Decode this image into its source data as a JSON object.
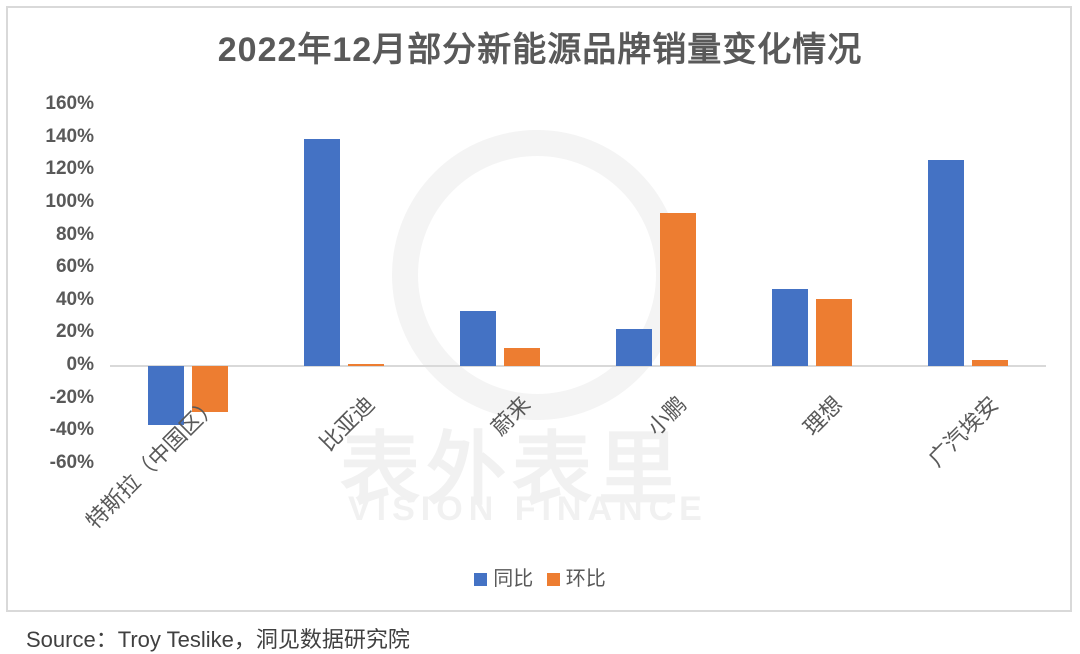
{
  "chart_data": {
    "type": "bar",
    "title": "2022年12月部分新能源品牌销量变化情况",
    "categories": [
      "特斯拉（中国区）",
      "比亚迪",
      "蔚来",
      "小鹏",
      "理想",
      "广汽埃安"
    ],
    "series": [
      {
        "name": "同比",
        "color": "#4472c4",
        "values": [
          -36,
          139,
          34,
          23,
          47,
          126
        ]
      },
      {
        "name": "环比",
        "color": "#ed7d31",
        "values": [
          -28,
          1,
          11,
          94,
          41,
          4
        ]
      }
    ],
    "xlabel": "",
    "ylabel": "",
    "ylim": [
      -60,
      160
    ],
    "yticks": [
      "160%",
      "140%",
      "120%",
      "100%",
      "80%",
      "60%",
      "40%",
      "20%",
      "0%",
      "-20%",
      "-40%",
      "-60%"
    ],
    "grid": false,
    "legend_position": "bottom"
  },
  "legend": [
    {
      "label": "同比",
      "color": "#4472c4"
    },
    {
      "label": "环比",
      "color": "#ed7d31"
    }
  ],
  "source": "Source：Troy Teslike，洞见数据研究院",
  "watermark": {
    "cn": "表外表里",
    "en": "VISION FINANCE"
  }
}
